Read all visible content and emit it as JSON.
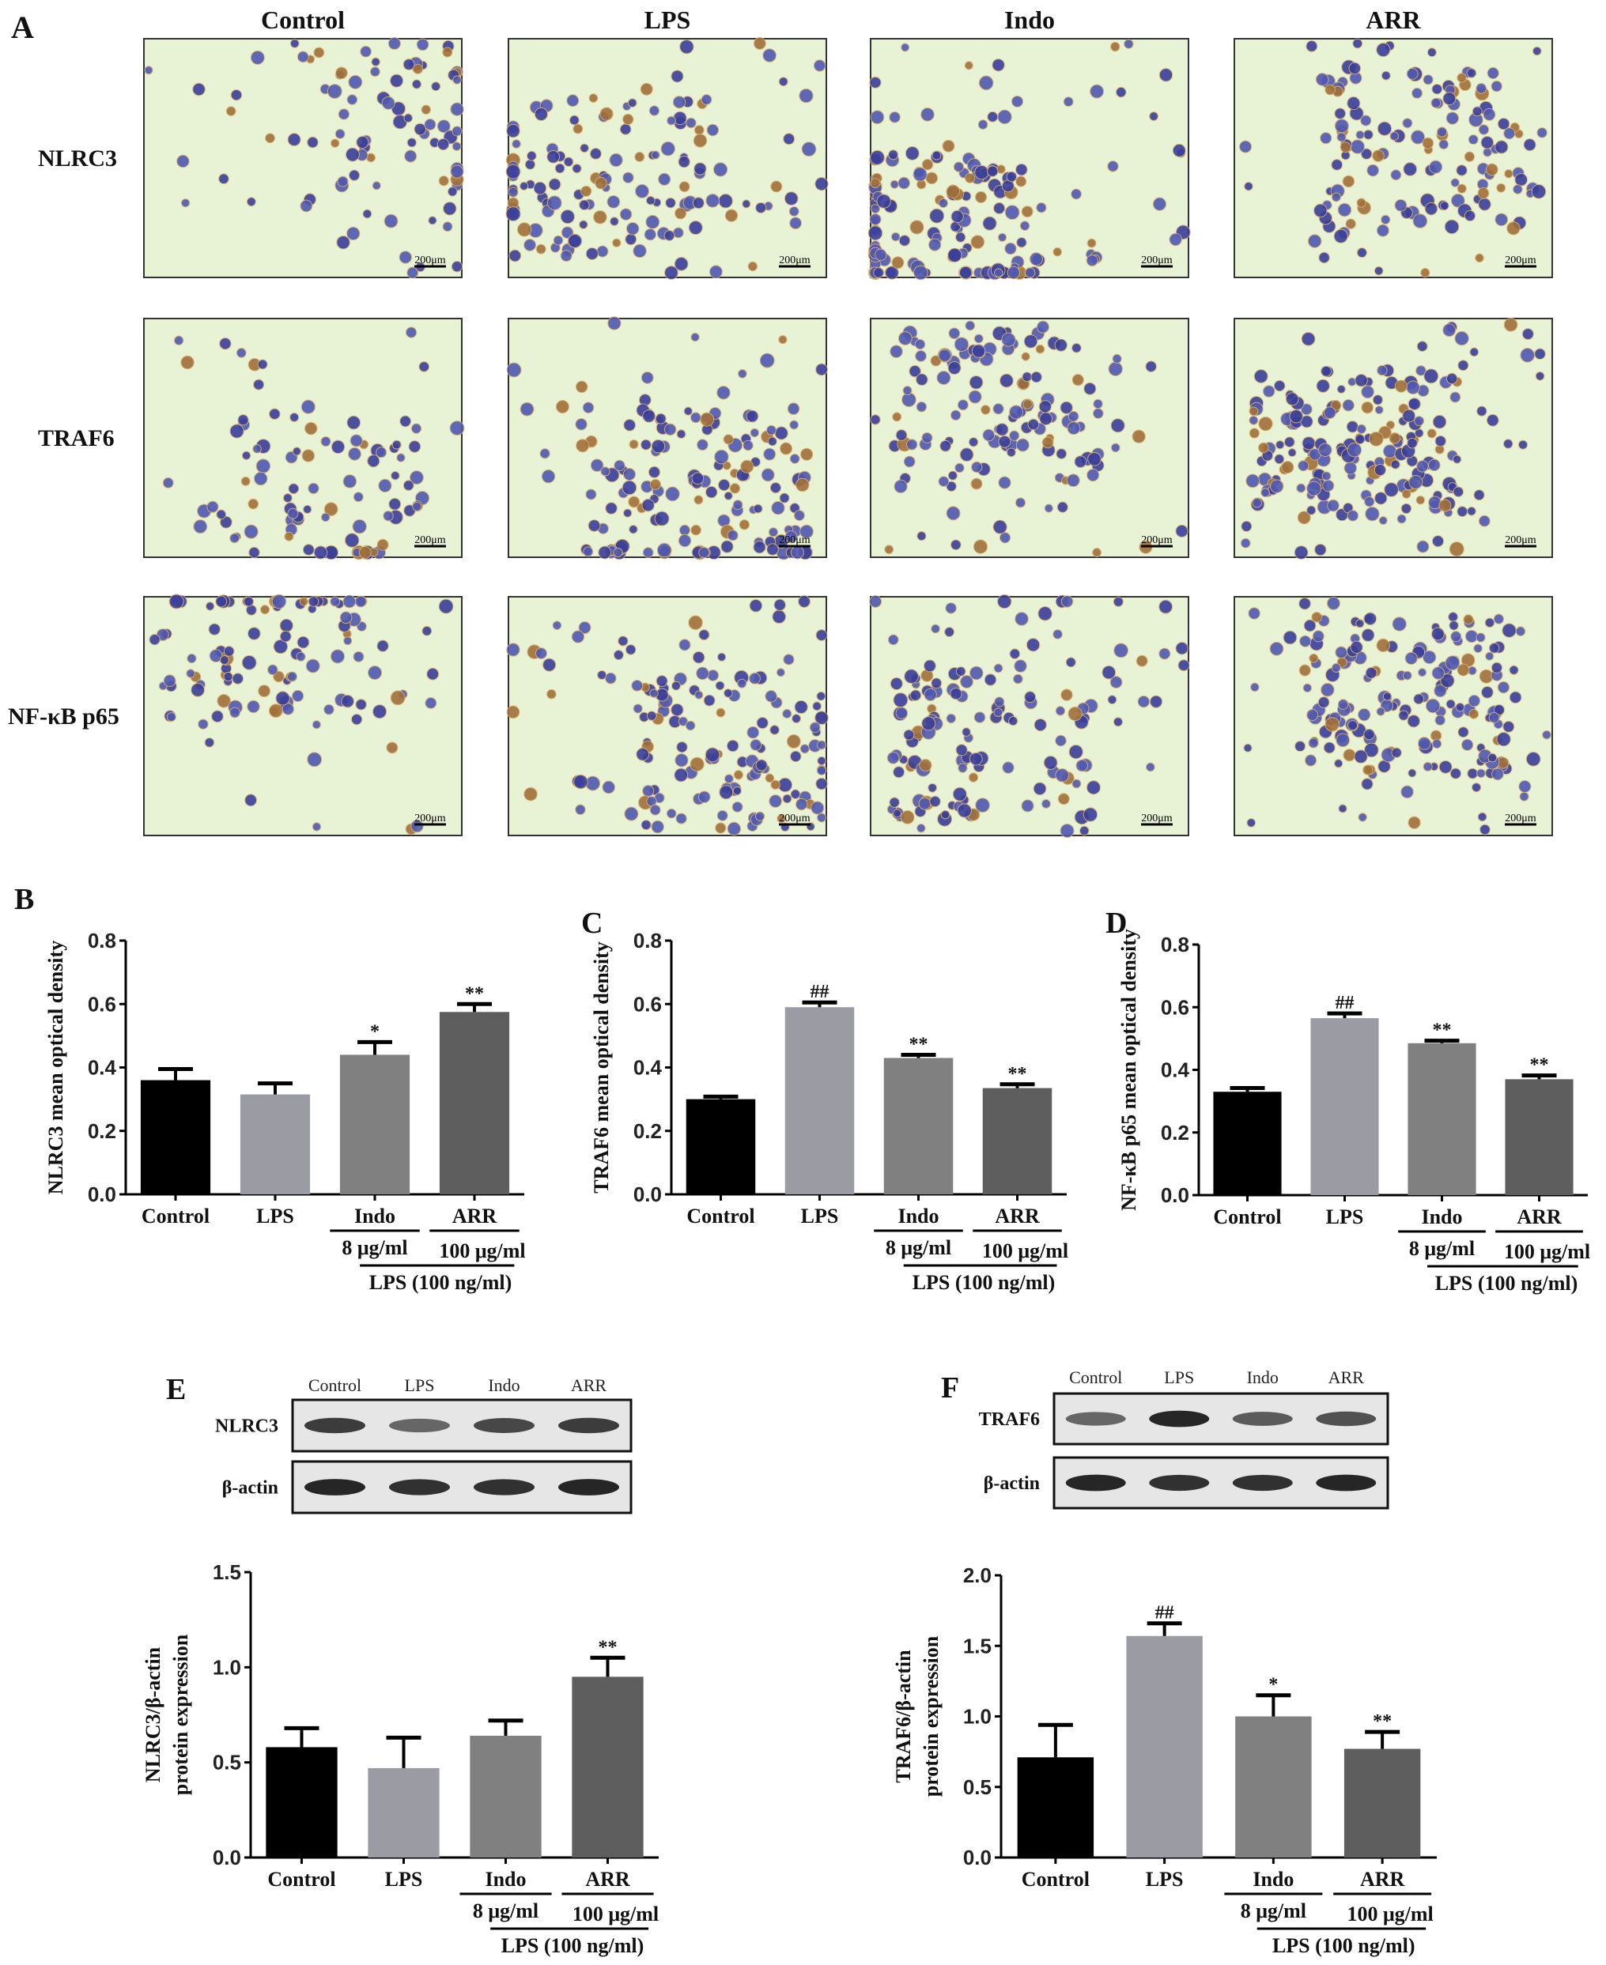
{
  "panel_a": {
    "letter": "A",
    "columns": [
      "Control",
      "LPS",
      "Indo",
      "ARR"
    ],
    "rows": [
      "NLRC3",
      "TRAF6",
      "NF-κB p65"
    ],
    "scale_bar": "200μm"
  },
  "blots": [
    {
      "letter": "E",
      "lanes": [
        "Control",
        "LPS",
        "Indo",
        "ARR"
      ],
      "rows": [
        "NLRC3",
        "β-actin"
      ],
      "band_intensity": [
        [
          0.8,
          0.6,
          0.75,
          0.8
        ],
        [
          0.9,
          0.85,
          0.85,
          0.9
        ]
      ]
    },
    {
      "letter": "F",
      "lanes": [
        "Control",
        "LPS",
        "Indo",
        "ARR"
      ],
      "rows": [
        "TRAF6",
        "β-actin"
      ],
      "band_intensity": [
        [
          0.6,
          0.9,
          0.65,
          0.7
        ],
        [
          0.9,
          0.85,
          0.85,
          0.9
        ]
      ]
    }
  ],
  "group_labels": {
    "dose_indo": "8 μg/ml",
    "dose_arr": "100 μg/ml",
    "lps": "LPS  (100 ng/ml)"
  },
  "colors": [
    "#000000",
    "#9b9ba3",
    "#808080",
    "#5e5e5e"
  ],
  "chart_data": [
    {
      "type": "bar",
      "letter": "B",
      "ylabel": "NLRC3 mean optical density",
      "categories": [
        "Control",
        "LPS",
        "Indo",
        "ARR"
      ],
      "values": [
        0.36,
        0.315,
        0.44,
        0.575
      ],
      "errors": [
        0.035,
        0.035,
        0.04,
        0.025
      ],
      "significance": [
        "",
        "",
        "*",
        "**"
      ],
      "ylim": [
        0,
        0.8
      ],
      "yticks": [
        "0.0",
        "0.2",
        "0.4",
        "0.6",
        "0.8"
      ]
    },
    {
      "type": "bar",
      "letter": "C",
      "ylabel": "TRAF6 mean optical density",
      "categories": [
        "Control",
        "LPS",
        "Indo",
        "ARR"
      ],
      "values": [
        0.3,
        0.59,
        0.43,
        0.335
      ],
      "errors": [
        0.008,
        0.015,
        0.01,
        0.012
      ],
      "significance": [
        "",
        "##",
        "**",
        "**"
      ],
      "ylim": [
        0,
        0.8
      ],
      "yticks": [
        "0.0",
        "0.2",
        "0.4",
        "0.6",
        "0.8"
      ]
    },
    {
      "type": "bar",
      "letter": "D",
      "ylabel": "NF-κB p65 mean optical density",
      "categories": [
        "Control",
        "LPS",
        "Indo",
        "ARR"
      ],
      "values": [
        0.33,
        0.565,
        0.485,
        0.37
      ],
      "errors": [
        0.012,
        0.015,
        0.008,
        0.012
      ],
      "significance": [
        "",
        "##",
        "**",
        "**"
      ],
      "ylim": [
        0,
        0.8
      ],
      "yticks": [
        "0.0",
        "0.2",
        "0.4",
        "0.6",
        "0.8"
      ]
    },
    {
      "type": "bar",
      "letter": "",
      "ylabel": "NLRC3/β-actin|protein expression",
      "categories": [
        "Control",
        "LPS",
        "Indo",
        "ARR"
      ],
      "values": [
        0.58,
        0.47,
        0.64,
        0.95
      ],
      "errors": [
        0.1,
        0.16,
        0.08,
        0.1
      ],
      "significance": [
        "",
        "",
        "",
        "**"
      ],
      "ylim": [
        0,
        1.5
      ],
      "yticks": [
        "0.0",
        "0.5",
        "1.0",
        "1.5"
      ]
    },
    {
      "type": "bar",
      "letter": "",
      "ylabel": "TRAF6/β-actin|protein expression",
      "categories": [
        "Control",
        "LPS",
        "Indo",
        "ARR"
      ],
      "values": [
        0.71,
        1.57,
        1.0,
        0.77
      ],
      "errors": [
        0.23,
        0.09,
        0.15,
        0.12
      ],
      "significance": [
        "",
        "##",
        "*",
        "**"
      ],
      "ylim": [
        0,
        2.0
      ],
      "yticks": [
        "0.0",
        "0.5",
        "1.0",
        "1.5",
        "2.0"
      ]
    }
  ]
}
